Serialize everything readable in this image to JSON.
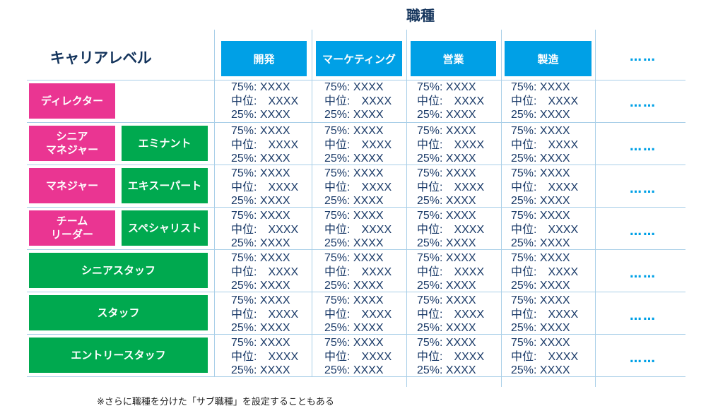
{
  "header": {
    "job_type_title": "職種",
    "career_level_title": "キャリアレベル",
    "columns": [
      "開発",
      "マーケティング",
      "営業",
      "製造"
    ],
    "more": "……"
  },
  "levels": [
    {
      "manager_label": "ディレクター",
      "specialist_label": ""
    },
    {
      "manager_label": "シニア\nマネジャー",
      "specialist_label": "エミナント"
    },
    {
      "manager_label": "マネジャー",
      "specialist_label": "エキスーパート"
    },
    {
      "manager_label": "チーム\nリーダー",
      "specialist_label": "スペシャリスト"
    },
    {
      "staff_label": "シニアスタッフ"
    },
    {
      "staff_label": "スタッフ"
    },
    {
      "staff_label": "エントリースタッフ"
    }
  ],
  "cell_text": {
    "p75": "75%: XXXX",
    "median": "中位:　XXXX",
    "p25": "25%: XXXX"
  },
  "row_more": "……",
  "footnote": "※さらに職種を分けた「サブ職種」を設定することもある",
  "colors": {
    "header_blue": "#00a0e6",
    "manager_pink": "#ea3592",
    "specialist_green": "#00a94f",
    "title_navy": "#14345c"
  }
}
